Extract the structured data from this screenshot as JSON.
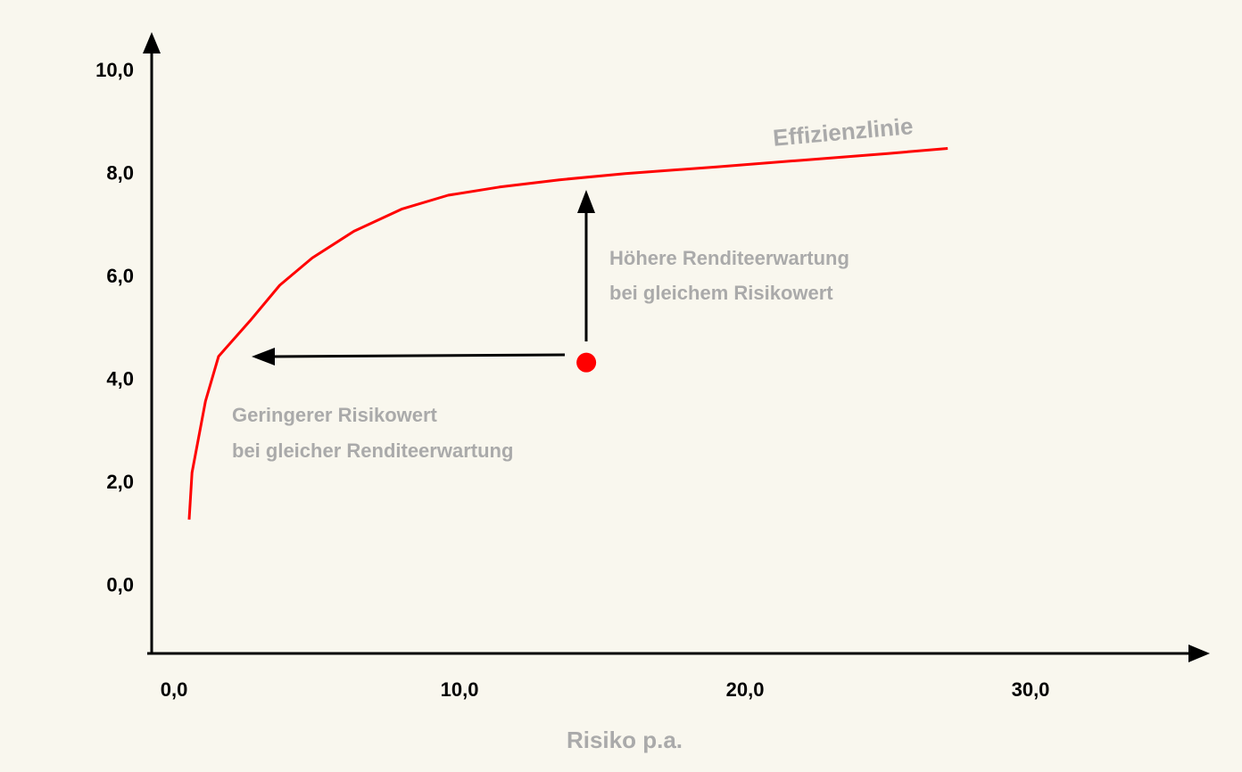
{
  "chart_data": {
    "type": "line",
    "xlabel": "Risiko p.a.",
    "xlim": [
      -0.94,
      36.25
    ],
    "ylim": [
      -1.25,
      10.7
    ],
    "xticks": [
      {
        "value": 0,
        "label": "0,0"
      },
      {
        "value": 10,
        "label": "10,0"
      },
      {
        "value": 20,
        "label": "20,0"
      },
      {
        "value": 30,
        "label": "30,0"
      }
    ],
    "yticks": [
      {
        "value": 0,
        "label": "0,0"
      },
      {
        "value": 2,
        "label": "2,0"
      },
      {
        "value": 4,
        "label": "4,0"
      },
      {
        "value": 6,
        "label": "6,0"
      },
      {
        "value": 8,
        "label": "8,0"
      },
      {
        "value": 10,
        "label": "10,0"
      }
    ],
    "series": [
      {
        "name": "Effizienzlinie",
        "color": "#ff0000",
        "x": [
          0.53,
          0.63,
          1.1,
          1.56,
          2.66,
          3.7,
          4.84,
          6.3,
          7.97,
          9.6,
          11.4,
          13.5,
          15.8,
          19.0,
          22.0,
          25.0,
          27.1
        ],
        "values": [
          1.3,
          2.21,
          3.6,
          4.47,
          5.16,
          5.85,
          6.38,
          6.9,
          7.33,
          7.6,
          7.76,
          7.9,
          8.02,
          8.15,
          8.28,
          8.41,
          8.51
        ]
      }
    ],
    "point": {
      "x": 14.44,
      "y": 4.35,
      "color": "#ff0000"
    },
    "annotations": [
      [
        "Höhere Renditeerwartung",
        "bei gleichem Risikowert"
      ],
      [
        "Geringerer Risikowert",
        "bei gleicher Renditeerwartung"
      ]
    ]
  }
}
